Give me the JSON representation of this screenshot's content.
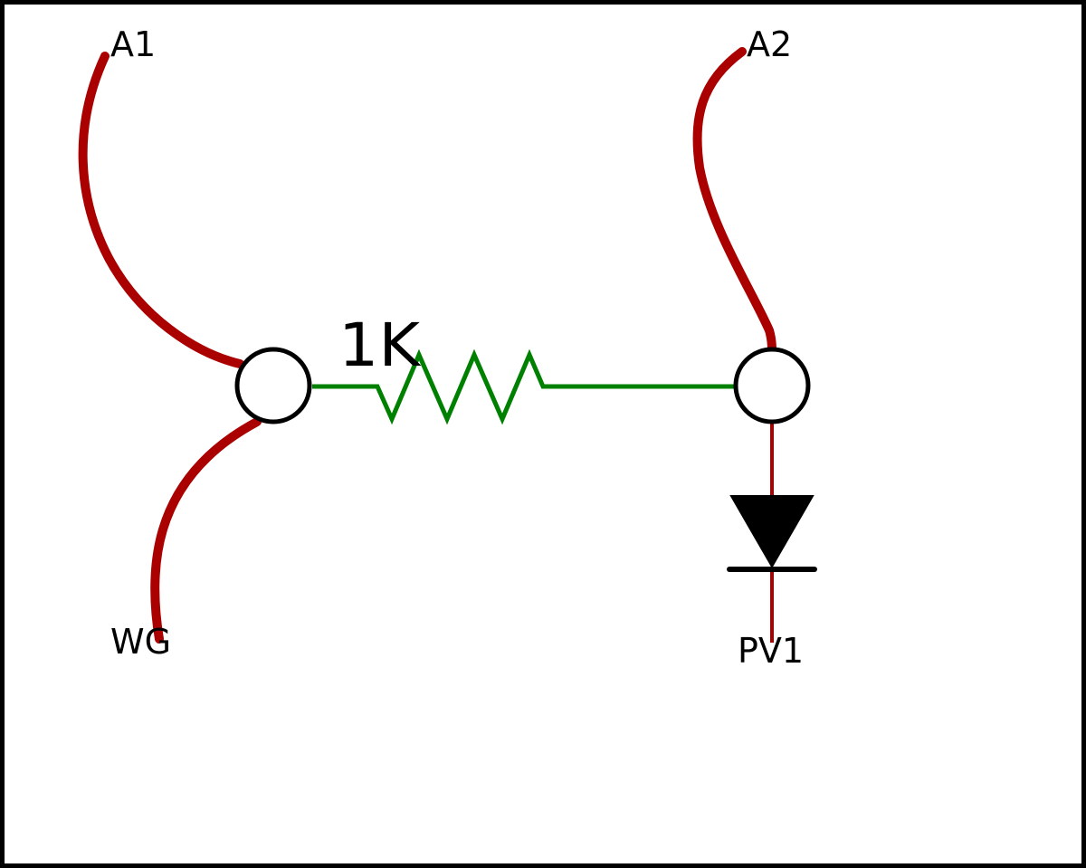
{
  "labels": {
    "a1": "A1",
    "a2": "A2",
    "wg": "WG",
    "pv1": "PV1",
    "resistor_value": "1K"
  },
  "colors": {
    "wire": "#aa0000",
    "resistor": "#008000",
    "outline": "#000000",
    "background": "#ffffff"
  },
  "components": {
    "resistor": "resistor",
    "diode": "diode",
    "node_left": "junction",
    "node_right": "junction"
  }
}
